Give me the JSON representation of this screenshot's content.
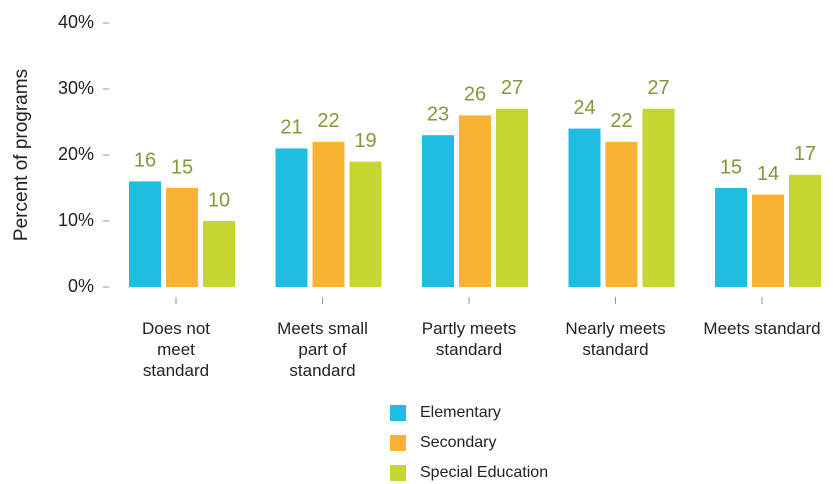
{
  "chart_data": {
    "type": "bar",
    "y_label": "Percent of programs",
    "categories": [
      "Does not meet standard",
      "Meets small part of standard",
      "Partly meets standard",
      "Nearly meets standard",
      "Meets standard"
    ],
    "series": [
      {
        "name": "Elementary",
        "color": "#1fbde0",
        "values": [
          16,
          21,
          23,
          24,
          15
        ]
      },
      {
        "name": "Secondary",
        "color": "#f9b233",
        "values": [
          15,
          22,
          26,
          22,
          14
        ]
      },
      {
        "name": "Special Education",
        "color": "#c5d630",
        "values": [
          10,
          19,
          27,
          27,
          17
        ]
      }
    ],
    "ylim": [
      0,
      40
    ],
    "yticks": [
      {
        "value": 0,
        "label": "0%"
      },
      {
        "value": 10,
        "label": "10%"
      },
      {
        "value": 20,
        "label": "20%"
      },
      {
        "value": 30,
        "label": "30%"
      },
      {
        "value": 40,
        "label": "40%"
      }
    ],
    "data_label_color": "#7f9a3c"
  }
}
